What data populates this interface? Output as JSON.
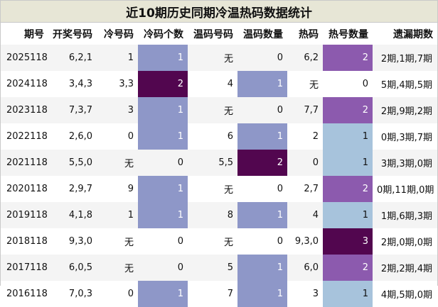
{
  "title": "近10期历史同期冷温热码数据统计",
  "headers": [
    "期号",
    "开奖号码",
    "冷号码",
    "冷码个数",
    "温码号码",
    "温码数量",
    "热码",
    "热号数量",
    "遗漏期数"
  ],
  "rows": [
    {
      "period": "2025118",
      "numbers": "6,2,1",
      "cold": "1",
      "cold_count": "1",
      "warm": "无",
      "warm_count": "0",
      "hot": "6,2",
      "hot_count": "2",
      "missed": "2期,1期,7期"
    },
    {
      "period": "2024118",
      "numbers": "3,4,3",
      "cold": "3,3",
      "cold_count": "2",
      "warm": "4",
      "warm_count": "1",
      "hot": "无",
      "hot_count": "0",
      "missed": "5期,4期,5期"
    },
    {
      "period": "2023118",
      "numbers": "7,3,7",
      "cold": "3",
      "cold_count": "1",
      "warm": "无",
      "warm_count": "0",
      "hot": "7,7",
      "hot_count": "2",
      "missed": "2期,9期,2期"
    },
    {
      "period": "2022118",
      "numbers": "2,6,0",
      "cold": "0",
      "cold_count": "1",
      "warm": "6",
      "warm_count": "1",
      "hot": "2",
      "hot_count": "1",
      "missed": "0期,3期,7期"
    },
    {
      "period": "2021118",
      "numbers": "5,5,0",
      "cold": "无",
      "cold_count": "0",
      "warm": "5,5",
      "warm_count": "2",
      "hot": "0",
      "hot_count": "1",
      "missed": "3期,3期,0期"
    },
    {
      "period": "2020118",
      "numbers": "2,9,7",
      "cold": "9",
      "cold_count": "1",
      "warm": "无",
      "warm_count": "0",
      "hot": "2,7",
      "hot_count": "2",
      "missed": "0期,11期,0期"
    },
    {
      "period": "2019118",
      "numbers": "4,1,8",
      "cold": "1",
      "cold_count": "1",
      "warm": "8",
      "warm_count": "1",
      "hot": "4",
      "hot_count": "1",
      "missed": "1期,6期,3期"
    },
    {
      "period": "2018118",
      "numbers": "9,3,0",
      "cold": "无",
      "cold_count": "0",
      "warm": "无",
      "warm_count": "0",
      "hot": "9,3,0",
      "hot_count": "3",
      "missed": "2期,0期,0期"
    },
    {
      "period": "2017118",
      "numbers": "6,0,5",
      "cold": "无",
      "cold_count": "0",
      "warm": "5",
      "warm_count": "1",
      "hot": "6,0",
      "hot_count": "2",
      "missed": "2期,2期,4期"
    },
    {
      "period": "2016118",
      "numbers": "7,0,3",
      "cold": "0",
      "cold_count": "1",
      "warm": "7",
      "warm_count": "1",
      "hot": "3",
      "hot_count": "1",
      "missed": "4期,5期,0期"
    }
  ],
  "colors": {
    "title_bg": "#e7e6d6",
    "count_1": "#8e97c8",
    "count_2_dark": "#52064f",
    "hot_2": "#8c5aae",
    "hot_1": "#a7c3dc",
    "hot_3": "#52064f"
  }
}
